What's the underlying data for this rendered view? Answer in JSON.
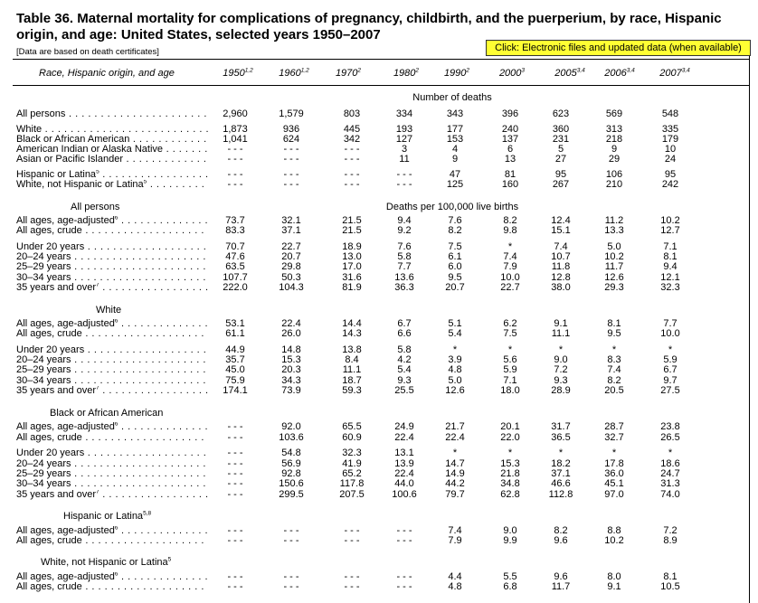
{
  "title": "Table 36. Maternal mortality for complications of pregnancy, childbirth, and the puerperium, by race, Hispanic origin, and age: United States, selected years 1950–2007",
  "note": "[Data are based on death certificates]",
  "link_text": "Click: Electronic files and updated data (when available)",
  "header": {
    "label": "Race, Hispanic origin, and age",
    "years": [
      {
        "year": "1950",
        "sup": "1,2"
      },
      {
        "year": "1960",
        "sup": "1,2"
      },
      {
        "year": "1970",
        "sup": "2"
      },
      {
        "year": "1980",
        "sup": "2"
      },
      {
        "year": "1990",
        "sup": "2"
      },
      {
        "year": "2000",
        "sup": "3"
      },
      {
        "year": "2005",
        "sup": "3,4"
      },
      {
        "year": "2006",
        "sup": "3,4"
      },
      {
        "year": "2007",
        "sup": "3,4"
      }
    ]
  },
  "sections": {
    "deaths": "Number of deaths",
    "rate": "Deaths per 100,000 live births"
  },
  "groups": {
    "all_persons": "All persons",
    "white": "White",
    "black": "Black or African American",
    "hispanic": "Hispanic or Latina",
    "hispanic_sup": "5,8",
    "white_nh": "White, not Hispanic or Latina",
    "white_nh_sup": "5"
  },
  "rows": [
    {
      "label": "All persons",
      "sup": "",
      "values": [
        "2,960",
        "1,579",
        "803",
        "334",
        "343",
        "396",
        "623",
        "569",
        "548"
      ]
    },
    {
      "label": "White",
      "sup": "",
      "values": [
        "1,873",
        "936",
        "445",
        "193",
        "177",
        "240",
        "360",
        "313",
        "335"
      ]
    },
    {
      "label": "Black or African American",
      "sup": "",
      "values": [
        "1,041",
        "624",
        "342",
        "127",
        "153",
        "137",
        "231",
        "218",
        "179"
      ]
    },
    {
      "label": "American Indian or Alaska Native",
      "sup": "",
      "values": [
        "- - -",
        "- - -",
        "- - -",
        "3",
        "4",
        "6",
        "5",
        "9",
        "10"
      ]
    },
    {
      "label": "Asian or Pacific Islander",
      "sup": "",
      "values": [
        "- - -",
        "- - -",
        "- - -",
        "11",
        "9",
        "13",
        "27",
        "29",
        "24"
      ]
    },
    {
      "label": "Hispanic or Latina",
      "sup": "5",
      "values": [
        "- - -",
        "- - -",
        "- - -",
        "- - -",
        "47",
        "81",
        "95",
        "106",
        "95"
      ]
    },
    {
      "label": "White, not Hispanic or Latina",
      "sup": "5",
      "values": [
        "- - -",
        "- - -",
        "- - -",
        "- - -",
        "125",
        "160",
        "267",
        "210",
        "242"
      ]
    },
    {
      "label": "All ages, age-adjusted",
      "sup": "6",
      "values": [
        "73.7",
        "32.1",
        "21.5",
        "9.4",
        "7.6",
        "8.2",
        "12.4",
        "11.2",
        "10.2"
      ]
    },
    {
      "label": "All ages, crude",
      "sup": "",
      "values": [
        "83.3",
        "37.1",
        "21.5",
        "9.2",
        "8.2",
        "9.8",
        "15.1",
        "13.3",
        "12.7"
      ]
    },
    {
      "label": "Under 20 years",
      "sup": "",
      "values": [
        "70.7",
        "22.7",
        "18.9",
        "7.6",
        "7.5",
        "*",
        "7.4",
        "5.0",
        "7.1"
      ]
    },
    {
      "label": "20–24 years",
      "sup": "",
      "values": [
        "47.6",
        "20.7",
        "13.0",
        "5.8",
        "6.1",
        "7.4",
        "10.7",
        "10.2",
        "8.1"
      ]
    },
    {
      "label": "25–29 years",
      "sup": "",
      "values": [
        "63.5",
        "29.8",
        "17.0",
        "7.7",
        "6.0",
        "7.9",
        "11.8",
        "11.7",
        "9.4"
      ]
    },
    {
      "label": "30–34 years",
      "sup": "",
      "values": [
        "107.7",
        "50.3",
        "31.6",
        "13.6",
        "9.5",
        "10.0",
        "12.8",
        "12.6",
        "12.1"
      ]
    },
    {
      "label": "35 years and over",
      "sup": "7",
      "values": [
        "222.0",
        "104.3",
        "81.9",
        "36.3",
        "20.7",
        "22.7",
        "38.0",
        "29.3",
        "32.3"
      ]
    },
    {
      "label": "All ages, age-adjusted",
      "sup": "6",
      "values": [
        "53.1",
        "22.4",
        "14.4",
        "6.7",
        "5.1",
        "6.2",
        "9.1",
        "8.1",
        "7.7"
      ]
    },
    {
      "label": "All ages, crude",
      "sup": "",
      "values": [
        "61.1",
        "26.0",
        "14.3",
        "6.6",
        "5.4",
        "7.5",
        "11.1",
        "9.5",
        "10.0"
      ]
    },
    {
      "label": "Under 20 years",
      "sup": "",
      "values": [
        "44.9",
        "14.8",
        "13.8",
        "5.8",
        "*",
        "*",
        "*",
        "*",
        "*"
      ]
    },
    {
      "label": "20–24 years",
      "sup": "",
      "values": [
        "35.7",
        "15.3",
        "8.4",
        "4.2",
        "3.9",
        "5.6",
        "9.0",
        "8.3",
        "5.9"
      ]
    },
    {
      "label": "25–29 years",
      "sup": "",
      "values": [
        "45.0",
        "20.3",
        "11.1",
        "5.4",
        "4.8",
        "5.9",
        "7.2",
        "7.4",
        "6.7"
      ]
    },
    {
      "label": "30–34 years",
      "sup": "",
      "values": [
        "75.9",
        "34.3",
        "18.7",
        "9.3",
        "5.0",
        "7.1",
        "9.3",
        "8.2",
        "9.7"
      ]
    },
    {
      "label": "35 years and over",
      "sup": "7",
      "values": [
        "174.1",
        "73.9",
        "59.3",
        "25.5",
        "12.6",
        "18.0",
        "28.9",
        "20.5",
        "27.5"
      ]
    },
    {
      "label": "All ages, age-adjusted",
      "sup": "6",
      "values": [
        "- - -",
        "92.0",
        "65.5",
        "24.9",
        "21.7",
        "20.1",
        "31.7",
        "28.7",
        "23.8"
      ]
    },
    {
      "label": "All ages, crude",
      "sup": "",
      "values": [
        "- - -",
        "103.6",
        "60.9",
        "22.4",
        "22.4",
        "22.0",
        "36.5",
        "32.7",
        "26.5"
      ]
    },
    {
      "label": "Under 20 years",
      "sup": "",
      "values": [
        "- - -",
        "54.8",
        "32.3",
        "13.1",
        "*",
        "*",
        "*",
        "*",
        "*"
      ]
    },
    {
      "label": "20–24 years",
      "sup": "",
      "values": [
        "- - -",
        "56.9",
        "41.9",
        "13.9",
        "14.7",
        "15.3",
        "18.2",
        "17.8",
        "18.6"
      ]
    },
    {
      "label": "25–29 years",
      "sup": "",
      "values": [
        "- - -",
        "92.8",
        "65.2",
        "22.4",
        "14.9",
        "21.8",
        "37.1",
        "36.0",
        "24.7"
      ]
    },
    {
      "label": "30–34 years",
      "sup": "",
      "values": [
        "- - -",
        "150.6",
        "117.8",
        "44.0",
        "44.2",
        "34.8",
        "46.6",
        "45.1",
        "31.3"
      ]
    },
    {
      "label": "35 years and over",
      "sup": "7",
      "values": [
        "- - -",
        "299.5",
        "207.5",
        "100.6",
        "79.7",
        "62.8",
        "112.8",
        "97.0",
        "74.0"
      ]
    },
    {
      "label": "All ages, age-adjusted",
      "sup": "6",
      "values": [
        "- - -",
        "- - -",
        "- - -",
        "- - -",
        "7.4",
        "9.0",
        "8.2",
        "8.8",
        "7.2"
      ]
    },
    {
      "label": "All ages, crude",
      "sup": "",
      "values": [
        "- - -",
        "- - -",
        "- - -",
        "- - -",
        "7.9",
        "9.9",
        "9.6",
        "10.2",
        "8.9"
      ]
    },
    {
      "label": "All ages, age-adjusted",
      "sup": "6",
      "values": [
        "- - -",
        "- - -",
        "- - -",
        "- - -",
        "4.4",
        "5.5",
        "9.6",
        "8.0",
        "8.1"
      ]
    },
    {
      "label": "All ages, crude",
      "sup": "",
      "values": [
        "- - -",
        "- - -",
        "- - -",
        "- - -",
        "4.8",
        "6.8",
        "11.7",
        "9.1",
        "10.5"
      ]
    }
  ]
}
